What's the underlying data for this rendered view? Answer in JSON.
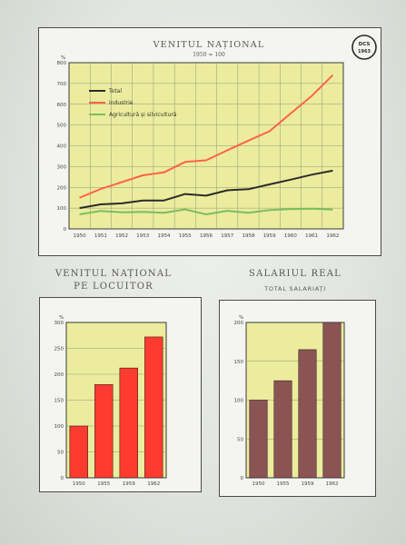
{
  "badge": {
    "line1": "DCS",
    "line2": "1963"
  },
  "chart_data": [
    {
      "type": "line",
      "title": "VENITUL NAȚIONAL",
      "subtitle": "1950 = 100",
      "unit_label": "%",
      "xlabel": "",
      "ylabel": "",
      "x": [
        "1950",
        "1951",
        "1952",
        "1953",
        "1954",
        "1955",
        "1956",
        "1957",
        "1958",
        "1959",
        "1960",
        "1961",
        "1962"
      ],
      "ylim": [
        0,
        800
      ],
      "yticks": [
        0,
        100,
        200,
        300,
        400,
        500,
        600,
        700,
        800
      ],
      "grid": true,
      "legend_position": "top-left",
      "series": [
        {
          "name": "Total",
          "color": "#2b2b2b",
          "values": [
            100,
            118,
            123,
            137,
            137,
            168,
            160,
            186,
            191,
            214,
            237,
            261,
            280
          ]
        },
        {
          "name": "Industrie",
          "color": "#ff6347",
          "values": [
            150,
            192,
            225,
            258,
            272,
            322,
            330,
            378,
            425,
            470,
            555,
            640,
            740
          ]
        },
        {
          "name": "Agricultură și silvicultură",
          "color": "#7bbf5a",
          "values": [
            70,
            86,
            80,
            82,
            78,
            94,
            70,
            87,
            78,
            91,
            95,
            97,
            93
          ]
        }
      ],
      "background": "#ecec9e"
    },
    {
      "type": "bar",
      "title": "VENITUL NAȚIONAL",
      "title2": "PE LOCUITOR",
      "unit_label": "%",
      "xlabel": "",
      "ylabel": "",
      "categories": [
        "1950",
        "1955",
        "1959",
        "1962"
      ],
      "values": [
        100,
        180,
        212,
        272
      ],
      "ylim": [
        0,
        300
      ],
      "yticks": [
        0,
        50,
        100,
        150,
        200,
        250,
        300
      ],
      "grid": true,
      "bar_color": "#ff3b2f",
      "background": "#ecec9e"
    },
    {
      "type": "bar",
      "title": "SALARIUL REAL",
      "title2": "TOTAL SALARIAȚI",
      "unit_label": "%",
      "xlabel": "",
      "ylabel": "",
      "categories": [
        "1950",
        "1955",
        "1959",
        "1962"
      ],
      "values": [
        100,
        125,
        165,
        200
      ],
      "ylim": [
        0,
        200
      ],
      "yticks": [
        0,
        50,
        100,
        150,
        200
      ],
      "grid": true,
      "bar_color": "#8a5454",
      "background": "#ecec9e"
    }
  ]
}
